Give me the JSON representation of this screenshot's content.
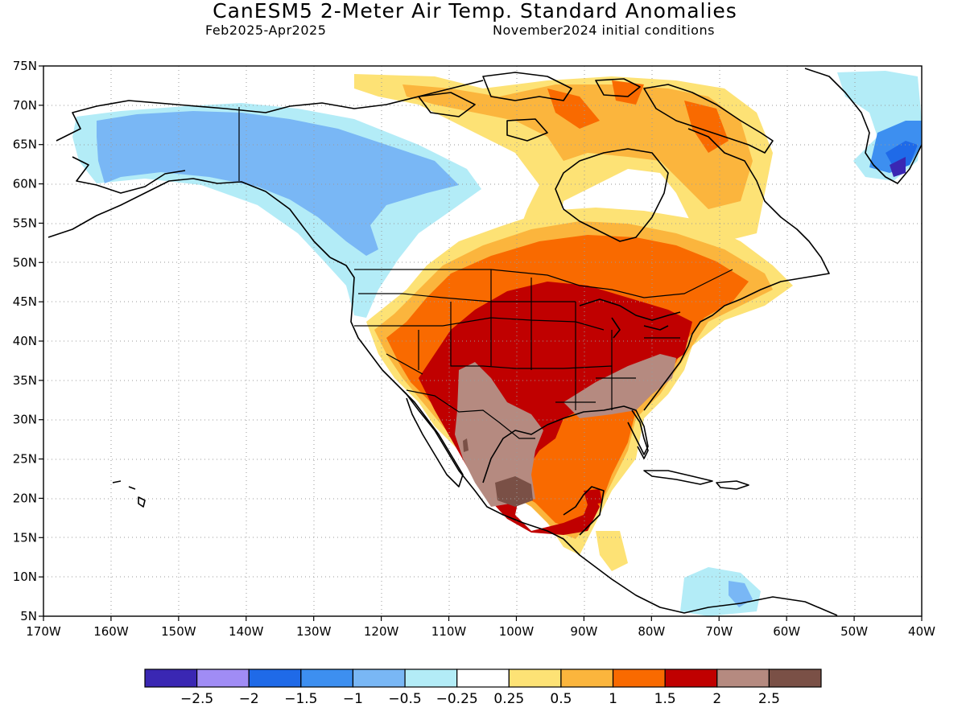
{
  "header": {
    "title": "CanESM5 2-Meter Air Temp. Standard Anomalies",
    "period": "Feb2025-Apr2025",
    "init": "November2024 initial conditions"
  },
  "map": {
    "lon_ticks": [
      "170W",
      "160W",
      "150W",
      "140W",
      "130W",
      "120W",
      "110W",
      "100W",
      "90W",
      "80W",
      "70W",
      "60W",
      "50W",
      "40W"
    ],
    "lat_ticks": [
      "75N",
      "70N",
      "65N",
      "60N",
      "55N",
      "50N",
      "45N",
      "40N",
      "35N",
      "30N",
      "25N",
      "20N",
      "15N",
      "10N",
      "5N"
    ],
    "extent": {
      "west": -170,
      "east": -40,
      "south": 5,
      "north": 75
    }
  },
  "colorbar": {
    "colors": [
      "#3a27b3",
      "#a08cf5",
      "#1f6ae8",
      "#3d8ff0",
      "#79b7f5",
      "#b3ecf7",
      "#ffffff",
      "#fde275",
      "#fbb53d",
      "#f96a00",
      "#c00000",
      "#b58a80",
      "#7a5046"
    ],
    "labels": [
      "-2.5",
      "-2",
      "-1.5",
      "-1",
      "-0.5",
      "-0.25",
      "0.25",
      "0.5",
      "1",
      "1.5",
      "2",
      "2.5"
    ]
  },
  "chart_data": {
    "type": "heatmap",
    "title": "CanESM5 2-Meter Air Temp. Standard Anomalies",
    "subtitle": "Feb2025-Apr2025 / November2024 initial conditions",
    "xlabel": "",
    "ylabel": "",
    "xlim": [
      -170,
      -40
    ],
    "ylim": [
      5,
      75
    ],
    "levels": [
      -2.5,
      -2,
      -1.5,
      -1,
      -0.5,
      -0.25,
      0.25,
      0.5,
      1,
      1.5,
      2,
      2.5
    ],
    "grid": true
  }
}
